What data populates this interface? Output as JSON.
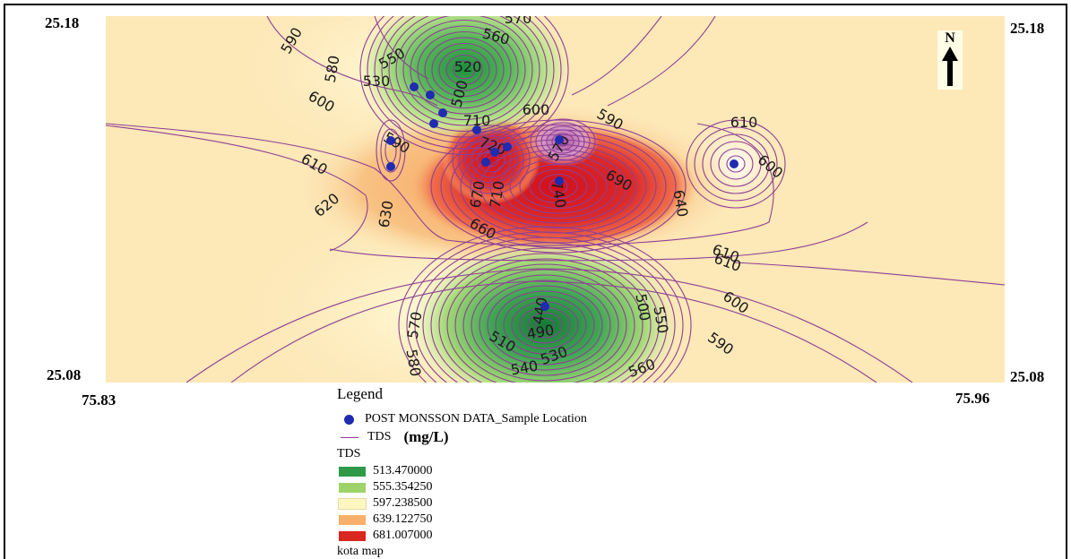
{
  "map": {
    "coords": {
      "top_left_lat": "25.18",
      "top_right_lat": "25.18",
      "bottom_left_lat": "25.08",
      "bottom_right_lat": "25.08",
      "bottom_left_lon": "75.83",
      "bottom_right_lon": "75.96"
    },
    "north_label": "N",
    "contour_labels": [
      "590",
      "570",
      "560",
      "580",
      "550",
      "520",
      "530",
      "500",
      "600",
      "600",
      "590",
      "570",
      "710",
      "590",
      "720",
      "610",
      "600",
      "670",
      "710",
      "740",
      "690",
      "640",
      "610",
      "620",
      "630",
      "660",
      "610",
      "600",
      "440",
      "500",
      "570",
      "550",
      "590",
      "490",
      "510",
      "530",
      "580",
      "540",
      "560",
      "610"
    ],
    "colors": {
      "outside": "#fde8b8",
      "green_dark": "#1f8f3e",
      "green_light": "#9ed36a",
      "yellow": "#fff9c9",
      "orange": "#f8b56e",
      "red": "#d71f24",
      "contour_line": "#8e3f95",
      "sample_point": "#1f2bb0"
    }
  },
  "legend": {
    "title": "Legend",
    "sample_label": "POST MONSSON DATA_Sample Location",
    "tds_line_label": "TDS",
    "unit": "(mg/L)",
    "tds_heading": "TDS",
    "classes": [
      {
        "label": "513.470000",
        "color": "#2e9a48"
      },
      {
        "label": "555.354250",
        "color": "#9ed36a"
      },
      {
        "label": "597.238500",
        "color": "#fff7c2"
      },
      {
        "label": "639.122750",
        "color": "#f8b06a"
      },
      {
        "label": "681.007000",
        "color": "#d9261f"
      }
    ],
    "footer": "kota map"
  }
}
